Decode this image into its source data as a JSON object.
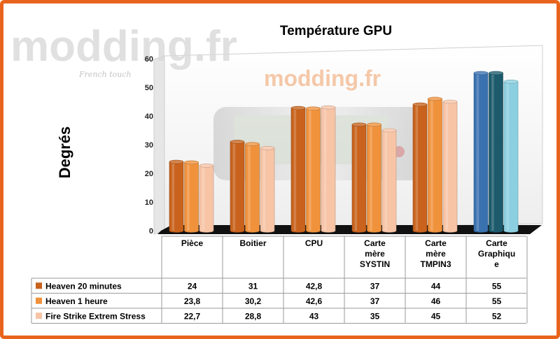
{
  "watermark": {
    "logo": "modding.fr",
    "tagline": "French touch"
  },
  "chart_data": {
    "type": "bar",
    "title": "Température GPU",
    "ylabel": "Degrés",
    "xlabel": "",
    "ylim": [
      0,
      60
    ],
    "yticks": [
      0,
      10,
      20,
      30,
      40,
      50,
      60
    ],
    "grid": false,
    "legend": "table-left",
    "categories": [
      [
        "Pièce"
      ],
      [
        "Boitier"
      ],
      [
        "CPU"
      ],
      [
        "Carte",
        "mère",
        "SYSTIN"
      ],
      [
        "Carte",
        "mère",
        "TMPIN3"
      ],
      [
        "Carte",
        "Graphiqu",
        "e"
      ]
    ],
    "series": [
      {
        "name": "Heaven 20 minutes",
        "values": [
          24,
          31,
          42.8,
          37,
          44,
          55
        ],
        "labels": [
          "24",
          "31",
          "42,8",
          "37",
          "44",
          "55"
        ]
      },
      {
        "name": "Heaven 1 heure",
        "values": [
          23.8,
          30.2,
          42.6,
          37,
          46,
          55
        ],
        "labels": [
          "23,8",
          "30,2",
          "42,6",
          "37",
          "46",
          "55"
        ]
      },
      {
        "name": "Fire Strike Extrem Stress",
        "values": [
          22.7,
          28.8,
          43,
          35,
          45,
          52
        ],
        "labels": [
          "22,7",
          "28,8",
          "43",
          "35",
          "45",
          "52"
        ]
      }
    ],
    "colors": {
      "default": [
        "#c8621c",
        "#f0923c",
        "#f7c4a6"
      ],
      "highlight": [
        "#3a72b0",
        "#1c5a6c",
        "#8ccfe0"
      ]
    }
  }
}
